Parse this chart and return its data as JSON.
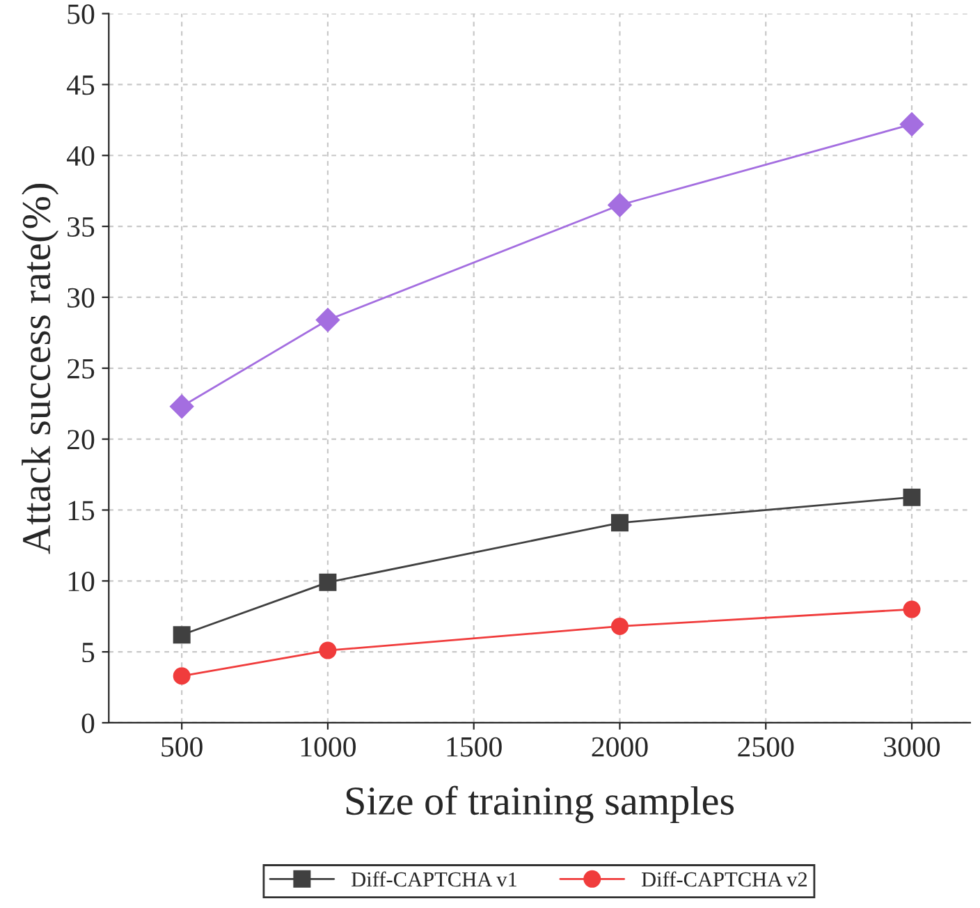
{
  "chart_data": {
    "type": "line",
    "xlabel": "Size of training samples",
    "ylabel": "Attack success rate(%)",
    "x": [
      500,
      1000,
      2000,
      3000
    ],
    "series": [
      {
        "name": "Diff-CAPTCHA v1",
        "color": "#404040",
        "marker": "square",
        "values": [
          6.2,
          9.9,
          14.1,
          15.9
        ]
      },
      {
        "name": "Diff-CAPTCHA v2",
        "color": "#f03c3c",
        "marker": "circle",
        "values": [
          3.3,
          5.1,
          6.8,
          8.0
        ]
      },
      {
        "color": "#a46ee0",
        "marker": "diamond",
        "values": [
          22.3,
          28.4,
          36.5,
          42.2
        ]
      }
    ],
    "xlim": [
      250,
      3200
    ],
    "xticks": [
      500,
      1000,
      1500,
      2000,
      2500,
      3000
    ],
    "ylim": [
      0,
      50
    ],
    "yticks": [
      0,
      5,
      10,
      15,
      20,
      25,
      30,
      35,
      40,
      45,
      50
    ],
    "grid": true,
    "legend": "bottom",
    "line_style": "solid"
  }
}
